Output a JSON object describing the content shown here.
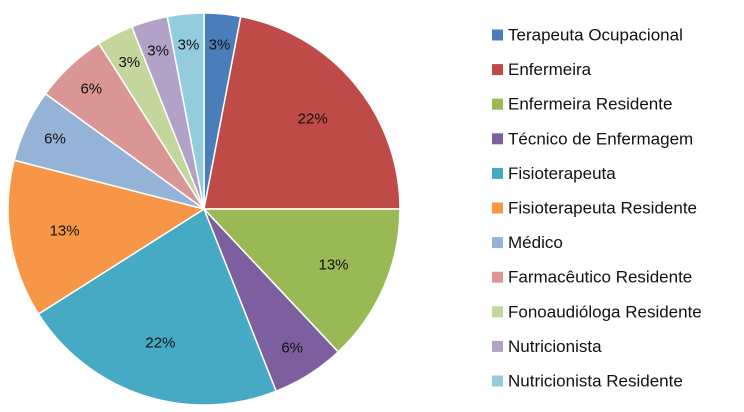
{
  "chart_data": {
    "type": "pie",
    "title": "",
    "legend_position": "right",
    "start_angle_deg": -90,
    "direction": "clockwise",
    "slices": [
      {
        "name": "Terapeuta Ocupacional",
        "value": 3,
        "label": "3%",
        "color": "#4A7EBB"
      },
      {
        "name": "Enfermeira",
        "value": 22,
        "label": "22%",
        "color": "#BE4B48"
      },
      {
        "name": "Enfermeira Residente",
        "value": 13,
        "label": "13%",
        "color": "#98B954"
      },
      {
        "name": "Técnico de Enfermagem",
        "value": 6,
        "label": "6%",
        "color": "#7D5FA0"
      },
      {
        "name": "Fisioterapeuta",
        "value": 22,
        "label": "22%",
        "color": "#46AAC5"
      },
      {
        "name": "Fisioterapeuta Residente",
        "value": 13,
        "label": "13%",
        "color": "#F79646"
      },
      {
        "name": "Médico",
        "value": 6,
        "label": "6%",
        "color": "#95B3D7"
      },
      {
        "name": "Farmacêutico Residente",
        "value": 6,
        "label": "6%",
        "color": "#D99694"
      },
      {
        "name": "Fonoaudióloga Residente",
        "value": 3,
        "label": "3%",
        "color": "#C3D69B"
      },
      {
        "name": "Nutricionista",
        "value": 3,
        "label": "3%",
        "color": "#B3A2C7"
      },
      {
        "name": "Nutricionista Residente",
        "value": 3,
        "label": "3%",
        "color": "#93CDDD"
      }
    ]
  }
}
